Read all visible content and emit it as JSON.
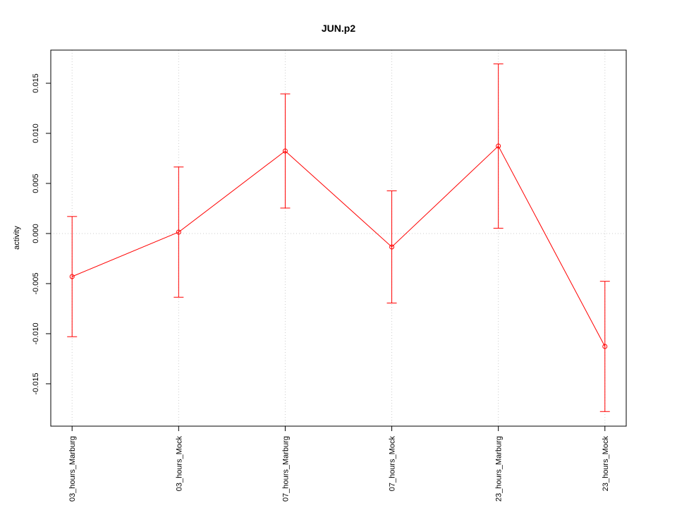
{
  "chart_data": {
    "type": "line",
    "title": "JUN.p2",
    "y_label": "activity",
    "categories": [
      "03_hours_Marburg",
      "03_hours_Mock",
      "07_hours_Marburg",
      "07_hours_Mock",
      "23_hours_Marburg",
      "23_hours_Mock"
    ],
    "series": [
      {
        "name": "JUN.p2",
        "color": "#ff0000",
        "values": [
          -0.0043,
          0.00014,
          0.00824,
          -0.00134,
          0.00873,
          -0.01127
        ],
        "errors": [
          0.006,
          0.0065,
          0.0057,
          0.0056,
          0.0082,
          0.0065
        ]
      }
    ],
    "ylim": [
      -0.01923,
      0.01831
    ],
    "yticks": [
      -0.015,
      {
        "value": -0.01,
        "label": "-0.010"
      },
      -0.005,
      {
        "value": 0,
        "label": "0.000"
      },
      0.005,
      {
        "value": 0.01,
        "label": "0.010"
      },
      0.015
    ],
    "reference_line": 0,
    "grid": true
  }
}
